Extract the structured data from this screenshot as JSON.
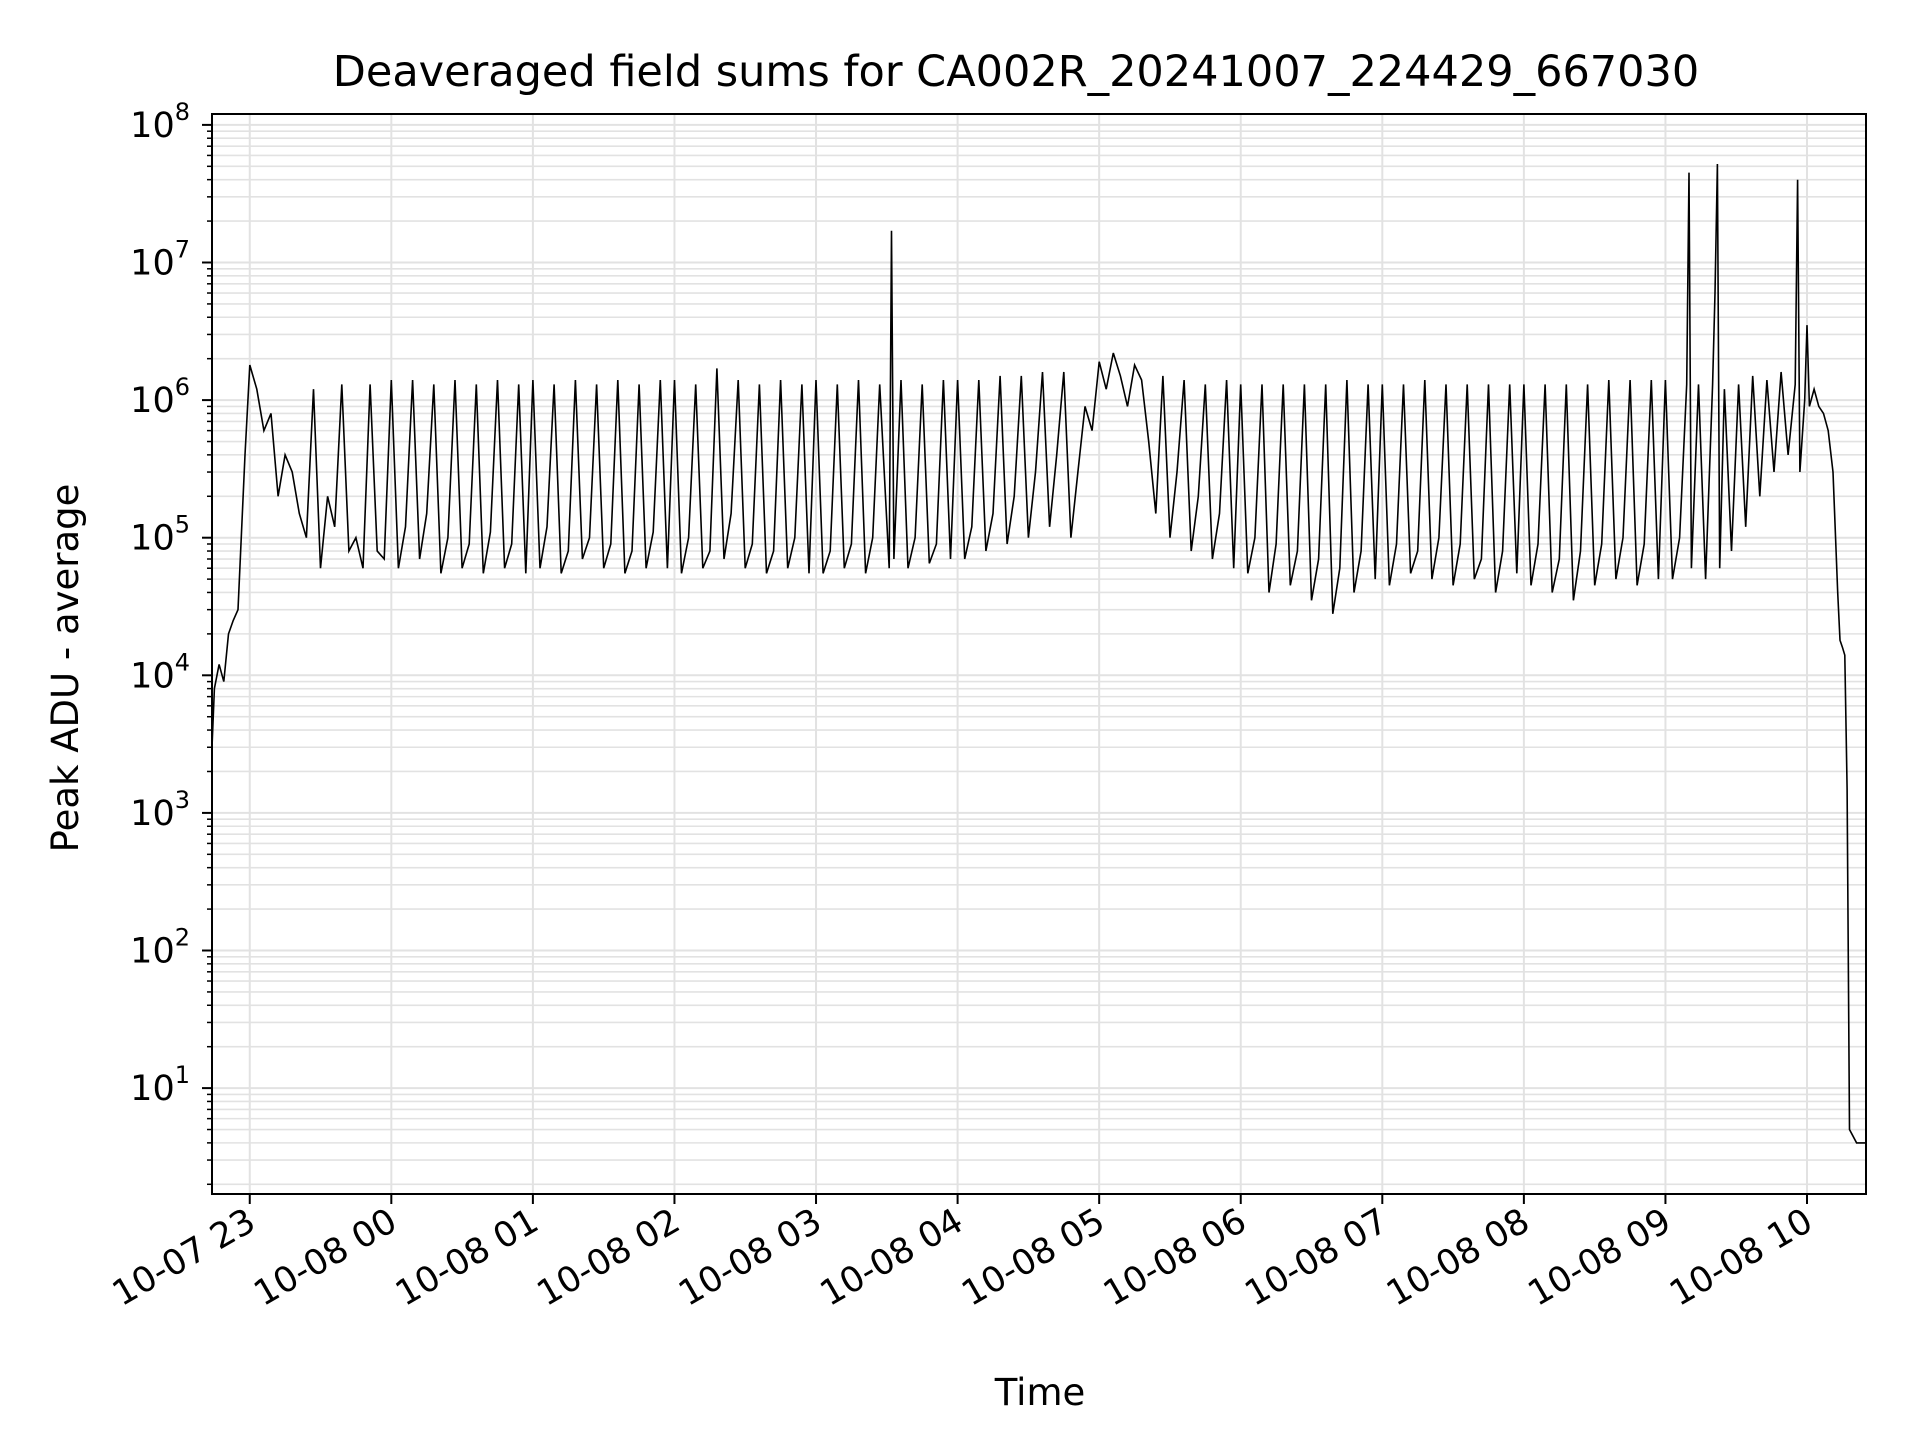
{
  "chart_data": {
    "type": "line",
    "title": "Deaveraged field sums for CA002R_20241007_224429_667030",
    "xlabel": "Time",
    "ylabel": "Peak ADU - average",
    "yscale": "log",
    "ylim": [
      1.7,
      120000000
    ],
    "xlim": [
      "2024-10-07 22:44",
      "2024-10-08 10:25"
    ],
    "grid": true,
    "line_color": "#000000",
    "x_ticks": [
      "2024-10-07 23:00",
      "2024-10-08 00:00",
      "2024-10-08 01:00",
      "2024-10-08 02:00",
      "2024-10-08 03:00",
      "2024-10-08 04:00",
      "2024-10-08 05:00",
      "2024-10-08 06:00",
      "2024-10-08 07:00",
      "2024-10-08 08:00",
      "2024-10-08 09:00",
      "2024-10-08 10:00"
    ],
    "x_tick_labels": [
      "10-07 23",
      "10-08 00",
      "10-08 01",
      "10-08 02",
      "10-08 03",
      "10-08 04",
      "10-08 05",
      "10-08 06",
      "10-08 07",
      "10-08 08",
      "10-08 09",
      "10-08 10"
    ],
    "y_ticks": [
      10,
      100,
      1000,
      10000,
      100000,
      1000000,
      10000000,
      100000000
    ],
    "y_tick_labels": [
      {
        "base": "10",
        "exp": "1"
      },
      {
        "base": "10",
        "exp": "2"
      },
      {
        "base": "10",
        "exp": "3"
      },
      {
        "base": "10",
        "exp": "4"
      },
      {
        "base": "10",
        "exp": "5"
      },
      {
        "base": "10",
        "exp": "6"
      },
      {
        "base": "10",
        "exp": "7"
      },
      {
        "base": "10",
        "exp": "8"
      }
    ],
    "series": [
      {
        "x": [
          "2024-10-07 22:44",
          "2024-10-07 22:45",
          "2024-10-07 22:47",
          "2024-10-07 22:49",
          "2024-10-07 22:51",
          "2024-10-07 22:53",
          "2024-10-07 22:55",
          "2024-10-07 22:58",
          "2024-10-07 23:00",
          "2024-10-07 23:03",
          "2024-10-07 23:06",
          "2024-10-07 23:09",
          "2024-10-07 23:12",
          "2024-10-07 23:15",
          "2024-10-07 23:18",
          "2024-10-07 23:21",
          "2024-10-07 23:24",
          "2024-10-07 23:27",
          "2024-10-07 23:30",
          "2024-10-07 23:33",
          "2024-10-07 23:36",
          "2024-10-07 23:39",
          "2024-10-07 23:42",
          "2024-10-07 23:45",
          "2024-10-07 23:48",
          "2024-10-07 23:51",
          "2024-10-07 23:54",
          "2024-10-07 23:57",
          "2024-10-08 00:00",
          "2024-10-08 00:03",
          "2024-10-08 00:06",
          "2024-10-08 00:09",
          "2024-10-08 00:12",
          "2024-10-08 00:15",
          "2024-10-08 00:18",
          "2024-10-08 00:21",
          "2024-10-08 00:24",
          "2024-10-08 00:27",
          "2024-10-08 00:30",
          "2024-10-08 00:33",
          "2024-10-08 00:36",
          "2024-10-08 00:39",
          "2024-10-08 00:42",
          "2024-10-08 00:45",
          "2024-10-08 00:48",
          "2024-10-08 00:51",
          "2024-10-08 00:54",
          "2024-10-08 00:57",
          "2024-10-08 01:00",
          "2024-10-08 01:03",
          "2024-10-08 01:06",
          "2024-10-08 01:09",
          "2024-10-08 01:12",
          "2024-10-08 01:15",
          "2024-10-08 01:18",
          "2024-10-08 01:21",
          "2024-10-08 01:24",
          "2024-10-08 01:27",
          "2024-10-08 01:30",
          "2024-10-08 01:33",
          "2024-10-08 01:36",
          "2024-10-08 01:39",
          "2024-10-08 01:42",
          "2024-10-08 01:45",
          "2024-10-08 01:48",
          "2024-10-08 01:51",
          "2024-10-08 01:54",
          "2024-10-08 01:57",
          "2024-10-08 02:00",
          "2024-10-08 02:03",
          "2024-10-08 02:06",
          "2024-10-08 02:09",
          "2024-10-08 02:12",
          "2024-10-08 02:15",
          "2024-10-08 02:18",
          "2024-10-08 02:21",
          "2024-10-08 02:24",
          "2024-10-08 02:27",
          "2024-10-08 02:30",
          "2024-10-08 02:33",
          "2024-10-08 02:36",
          "2024-10-08 02:39",
          "2024-10-08 02:42",
          "2024-10-08 02:45",
          "2024-10-08 02:48",
          "2024-10-08 02:51",
          "2024-10-08 02:54",
          "2024-10-08 02:57",
          "2024-10-08 03:00",
          "2024-10-08 03:03",
          "2024-10-08 03:06",
          "2024-10-08 03:09",
          "2024-10-08 03:12",
          "2024-10-08 03:15",
          "2024-10-08 03:18",
          "2024-10-08 03:21",
          "2024-10-08 03:24",
          "2024-10-08 03:27",
          "2024-10-08 03:31",
          "2024-10-08 03:32",
          "2024-10-08 03:33",
          "2024-10-08 03:36",
          "2024-10-08 03:39",
          "2024-10-08 03:42",
          "2024-10-08 03:45",
          "2024-10-08 03:48",
          "2024-10-08 03:51",
          "2024-10-08 03:54",
          "2024-10-08 03:57",
          "2024-10-08 04:00",
          "2024-10-08 04:03",
          "2024-10-08 04:06",
          "2024-10-08 04:09",
          "2024-10-08 04:12",
          "2024-10-08 04:15",
          "2024-10-08 04:18",
          "2024-10-08 04:21",
          "2024-10-08 04:24",
          "2024-10-08 04:27",
          "2024-10-08 04:30",
          "2024-10-08 04:33",
          "2024-10-08 04:36",
          "2024-10-08 04:39",
          "2024-10-08 04:42",
          "2024-10-08 04:45",
          "2024-10-08 04:48",
          "2024-10-08 04:51",
          "2024-10-08 04:54",
          "2024-10-08 04:57",
          "2024-10-08 05:00",
          "2024-10-08 05:03",
          "2024-10-08 05:06",
          "2024-10-08 05:09",
          "2024-10-08 05:12",
          "2024-10-08 05:15",
          "2024-10-08 05:18",
          "2024-10-08 05:21",
          "2024-10-08 05:24",
          "2024-10-08 05:27",
          "2024-10-08 05:30",
          "2024-10-08 05:33",
          "2024-10-08 05:36",
          "2024-10-08 05:39",
          "2024-10-08 05:42",
          "2024-10-08 05:45",
          "2024-10-08 05:48",
          "2024-10-08 05:51",
          "2024-10-08 05:54",
          "2024-10-08 05:57",
          "2024-10-08 06:00",
          "2024-10-08 06:03",
          "2024-10-08 06:06",
          "2024-10-08 06:09",
          "2024-10-08 06:12",
          "2024-10-08 06:15",
          "2024-10-08 06:18",
          "2024-10-08 06:21",
          "2024-10-08 06:24",
          "2024-10-08 06:27",
          "2024-10-08 06:30",
          "2024-10-08 06:33",
          "2024-10-08 06:36",
          "2024-10-08 06:39",
          "2024-10-08 06:42",
          "2024-10-08 06:45",
          "2024-10-08 06:48",
          "2024-10-08 06:51",
          "2024-10-08 06:54",
          "2024-10-08 06:57",
          "2024-10-08 07:00",
          "2024-10-08 07:03",
          "2024-10-08 07:06",
          "2024-10-08 07:09",
          "2024-10-08 07:12",
          "2024-10-08 07:15",
          "2024-10-08 07:18",
          "2024-10-08 07:21",
          "2024-10-08 07:24",
          "2024-10-08 07:27",
          "2024-10-08 07:30",
          "2024-10-08 07:33",
          "2024-10-08 07:36",
          "2024-10-08 07:39",
          "2024-10-08 07:42",
          "2024-10-08 07:45",
          "2024-10-08 07:48",
          "2024-10-08 07:51",
          "2024-10-08 07:54",
          "2024-10-08 07:57",
          "2024-10-08 08:00",
          "2024-10-08 08:03",
          "2024-10-08 08:06",
          "2024-10-08 08:09",
          "2024-10-08 08:12",
          "2024-10-08 08:15",
          "2024-10-08 08:18",
          "2024-10-08 08:21",
          "2024-10-08 08:24",
          "2024-10-08 08:27",
          "2024-10-08 08:30",
          "2024-10-08 08:33",
          "2024-10-08 08:36",
          "2024-10-08 08:39",
          "2024-10-08 08:42",
          "2024-10-08 08:45",
          "2024-10-08 08:48",
          "2024-10-08 08:51",
          "2024-10-08 08:54",
          "2024-10-08 08:57",
          "2024-10-08 09:00",
          "2024-10-08 09:03",
          "2024-10-08 09:06",
          "2024-10-08 09:09",
          "2024-10-08 09:10",
          "2024-10-08 09:11",
          "2024-10-08 09:14",
          "2024-10-08 09:17",
          "2024-10-08 09:20",
          "2024-10-08 09:21",
          "2024-10-08 09:22",
          "2024-10-08 09:23",
          "2024-10-08 09:25",
          "2024-10-08 09:28",
          "2024-10-08 09:31",
          "2024-10-08 09:34",
          "2024-10-08 09:37",
          "2024-10-08 09:40",
          "2024-10-08 09:43",
          "2024-10-08 09:46",
          "2024-10-08 09:49",
          "2024-10-08 09:52",
          "2024-10-08 09:55",
          "2024-10-08 09:56",
          "2024-10-08 09:57",
          "2024-10-08 09:59",
          "2024-10-08 10:00",
          "2024-10-08 10:01",
          "2024-10-08 10:03",
          "2024-10-08 10:05",
          "2024-10-08 10:07",
          "2024-10-08 10:09",
          "2024-10-08 10:11",
          "2024-10-08 10:13",
          "2024-10-08 10:14",
          "2024-10-08 10:15",
          "2024-10-08 10:16",
          "2024-10-08 10:17",
          "2024-10-08 10:18",
          "2024-10-08 10:21",
          "2024-10-08 10:25"
        ],
        "y": [
          3000,
          8000,
          12000,
          9000,
          20000,
          25000,
          30000,
          400000,
          1800000,
          1200000,
          600000,
          800000,
          200000,
          400000,
          300000,
          150000,
          100000,
          1200000,
          60000,
          200000,
          120000,
          1300000,
          80000,
          100000,
          60000,
          1300000,
          80000,
          70000,
          1400000,
          60000,
          120000,
          1400000,
          70000,
          150000,
          1300000,
          55000,
          100000,
          1400000,
          60000,
          90000,
          1300000,
          55000,
          110000,
          1400000,
          60000,
          90000,
          1300000,
          55000,
          1400000,
          60000,
          120000,
          1300000,
          55000,
          80000,
          1400000,
          70000,
          100000,
          1300000,
          60000,
          90000,
          1400000,
          55000,
          80000,
          1300000,
          60000,
          110000,
          1400000,
          60000,
          1400000,
          55000,
          100000,
          1300000,
          60000,
          80000,
          1700000,
          70000,
          150000,
          1400000,
          60000,
          90000,
          1300000,
          55000,
          80000,
          1400000,
          60000,
          100000,
          1300000,
          55000,
          1400000,
          55000,
          80000,
          1300000,
          60000,
          90000,
          1400000,
          55000,
          100000,
          1300000,
          60000,
          17000000,
          70000,
          1400000,
          60000,
          100000,
          1300000,
          65000,
          90000,
          1400000,
          70000,
          1400000,
          70000,
          120000,
          1400000,
          80000,
          150000,
          1500000,
          90000,
          200000,
          1500000,
          100000,
          300000,
          1600000,
          120000,
          400000,
          1600000,
          100000,
          300000,
          900000,
          600000,
          1900000,
          1200000,
          2200000,
          1500000,
          900000,
          1800000,
          1400000,
          500000,
          150000,
          1500000,
          100000,
          300000,
          1400000,
          80000,
          200000,
          1300000,
          70000,
          150000,
          1400000,
          60000,
          1300000,
          55000,
          100000,
          1300000,
          40000,
          90000,
          1300000,
          45000,
          80000,
          1300000,
          35000,
          70000,
          1300000,
          28000,
          60000,
          1400000,
          40000,
          80000,
          1300000,
          50000,
          1300000,
          45000,
          90000,
          1300000,
          55000,
          80000,
          1400000,
          50000,
          100000,
          1300000,
          45000,
          90000,
          1300000,
          50000,
          70000,
          1300000,
          40000,
          80000,
          1300000,
          55000,
          1300000,
          45000,
          90000,
          1300000,
          40000,
          70000,
          1300000,
          35000,
          80000,
          1300000,
          45000,
          90000,
          1400000,
          50000,
          100000,
          1400000,
          45000,
          90000,
          1400000,
          50000,
          1400000,
          50000,
          100000,
          1300000,
          45000000,
          60000,
          1300000,
          50000,
          1300000,
          6000000,
          52000000,
          60000,
          1200000,
          80000,
          1300000,
          120000,
          1500000,
          200000,
          1400000,
          300000,
          1600000,
          400000,
          1300000,
          40000000,
          300000,
          1000000,
          3500000,
          900000,
          1200000,
          900000,
          800000,
          600000,
          300000,
          40000,
          18000,
          16000,
          14000,
          1500,
          5,
          4,
          4
        ]
      }
    ]
  }
}
